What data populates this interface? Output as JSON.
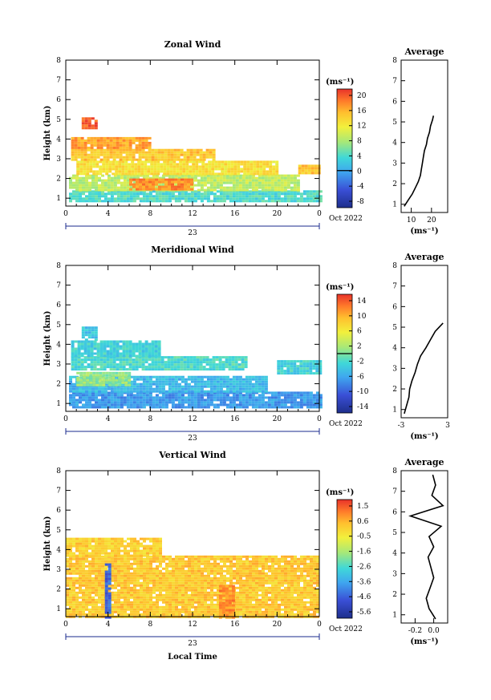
{
  "figure": {
    "ylabel": "Height (km)",
    "xlabel": "Local Time",
    "date_label": "Oct 2022",
    "day_label": "23",
    "unit_label": "(ms⁻¹)",
    "average_title": "Average"
  },
  "chart_data": [
    {
      "type": "heatmap",
      "title": "Zonal Wind",
      "xticks": [
        "0",
        "4",
        "8",
        "12",
        "16",
        "20",
        "0"
      ],
      "xlim": [
        0,
        24
      ],
      "yticks": [
        "1",
        "2",
        "3",
        "4",
        "5",
        "6",
        "7",
        "8"
      ],
      "ylim": [
        0.6,
        8.0
      ],
      "colorbar": {
        "ticks": [
          "20",
          "16",
          "12",
          "8",
          "4",
          "0",
          "-4",
          "-8"
        ],
        "range": [
          -10,
          22
        ],
        "zero_line": 0
      },
      "regions": [
        {
          "t": [
            0.3,
            24
          ],
          "h": [
            0.8,
            1.4
          ],
          "value": 4
        },
        {
          "t": [
            0.3,
            22
          ],
          "h": [
            1.4,
            2.2
          ],
          "value": 9
        },
        {
          "t": [
            1,
            20
          ],
          "h": [
            2.2,
            2.9
          ],
          "value": 13
        },
        {
          "t": [
            0.5,
            14
          ],
          "h": [
            2.9,
            3.5
          ],
          "value": 15
        },
        {
          "t": [
            0.5,
            8
          ],
          "h": [
            3.5,
            4.1
          ],
          "value": 17
        },
        {
          "t": [
            6,
            12
          ],
          "h": [
            1.5,
            2.0
          ],
          "value": 18
        },
        {
          "t": [
            1.5,
            3
          ],
          "h": [
            4.6,
            5.1
          ],
          "value": 20
        },
        {
          "t": [
            22,
            24
          ],
          "h": [
            2.3,
            2.7
          ],
          "value": 15
        }
      ],
      "average": {
        "title": "Average",
        "xticks": [
          "10",
          "20"
        ],
        "xlim": [
          5,
          28
        ],
        "xlabel": "(ms⁻¹)",
        "height": [
          0.9,
          1.2,
          1.5,
          1.8,
          2.1,
          2.4,
          2.7,
          3.0,
          3.3,
          3.6,
          3.9,
          4.2,
          4.5,
          4.8,
          5.1,
          5.3
        ],
        "value": [
          6.5,
          8.5,
          10.5,
          12,
          13.5,
          14.5,
          15,
          15.5,
          16,
          16.5,
          17.5,
          18,
          19,
          19.5,
          20.5,
          21
        ]
      }
    },
    {
      "type": "heatmap",
      "title": "Meridional Wind",
      "xticks": [
        "0",
        "4",
        "8",
        "12",
        "16",
        "20",
        "0"
      ],
      "xlim": [
        0,
        24
      ],
      "yticks": [
        "1",
        "2",
        "3",
        "4",
        "5",
        "6",
        "7",
        "8"
      ],
      "ylim": [
        0.6,
        8.0
      ],
      "colorbar": {
        "ticks": [
          "14",
          "10",
          "6",
          "2",
          "-2",
          "-6",
          "-10",
          "-14"
        ],
        "range": [
          -16,
          16
        ],
        "zero_line": 0
      },
      "regions": [
        {
          "t": [
            0.3,
            24
          ],
          "h": [
            0.8,
            1.6
          ],
          "value": -7
        },
        {
          "t": [
            0.3,
            19
          ],
          "h": [
            1.6,
            2.4
          ],
          "value": -5
        },
        {
          "t": [
            1,
            6
          ],
          "h": [
            1.9,
            2.6
          ],
          "value": 1
        },
        {
          "t": [
            0.5,
            17
          ],
          "h": [
            2.7,
            3.4
          ],
          "value": -2
        },
        {
          "t": [
            0.5,
            9
          ],
          "h": [
            3.4,
            4.2
          ],
          "value": -3
        },
        {
          "t": [
            1.5,
            3
          ],
          "h": [
            4.2,
            4.9
          ],
          "value": -4
        },
        {
          "t": [
            20,
            24
          ],
          "h": [
            2.5,
            3.2
          ],
          "value": -3
        }
      ],
      "average": {
        "title": "Average",
        "xticks": [
          "-3",
          "3"
        ],
        "xlim": [
          -3,
          3
        ],
        "xlabel": "(ms⁻¹)",
        "height": [
          0.8,
          1.2,
          1.6,
          2.0,
          2.4,
          2.8,
          3.2,
          3.6,
          4.0,
          4.4,
          4.8,
          5.2
        ],
        "value": [
          -2.6,
          -2.3,
          -2.0,
          -1.9,
          -1.6,
          -1.2,
          -0.9,
          -0.5,
          0.2,
          0.8,
          1.4,
          2.4
        ]
      }
    },
    {
      "type": "heatmap",
      "title": "Vertical Wind",
      "xticks": [
        "0",
        "4",
        "8",
        "12",
        "16",
        "20",
        "0"
      ],
      "xlim": [
        0,
        24
      ],
      "yticks": [
        "1",
        "2",
        "3",
        "4",
        "5",
        "6",
        "7",
        "8"
      ],
      "ylim": [
        0.6,
        8.0
      ],
      "colorbar": {
        "ticks": [
          "1.5",
          "0.6",
          "-0.5",
          "-1.6",
          "-2.6",
          "-3.6",
          "-4.6",
          "-5.6"
        ],
        "range": [
          -6,
          2
        ],
        "zero_line": null
      },
      "regions": [
        {
          "t": [
            0,
            24
          ],
          "h": [
            0.6,
            3.7
          ],
          "value": 0.2
        },
        {
          "t": [
            0,
            9
          ],
          "h": [
            3.7,
            4.6
          ],
          "value": 0.1
        },
        {
          "t": [
            3.7,
            4.3
          ],
          "h": [
            0.6,
            3.3
          ],
          "value": -4.5
        },
        {
          "t": [
            14.5,
            16
          ],
          "h": [
            0.6,
            2.2
          ],
          "value": 1.0
        }
      ],
      "average": {
        "title": "Average",
        "xticks": [
          "-0.2",
          "0.0"
        ],
        "xlim": [
          -0.35,
          0.15
        ],
        "xlabel": "(ms⁻¹)",
        "height": [
          0.8,
          1.3,
          1.8,
          2.3,
          2.8,
          3.3,
          3.8,
          4.3,
          4.8,
          5.3,
          5.8,
          6.3,
          6.8,
          7.3,
          7.8
        ],
        "value": [
          0.02,
          -0.05,
          -0.08,
          -0.04,
          0.0,
          -0.03,
          -0.06,
          0.0,
          -0.05,
          0.08,
          -0.25,
          0.1,
          -0.02,
          0.02,
          -0.01
        ]
      }
    }
  ]
}
